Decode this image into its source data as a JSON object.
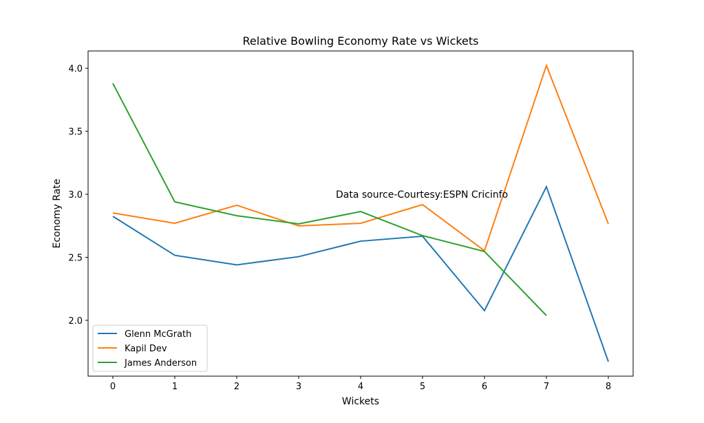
{
  "chart_data": {
    "type": "line",
    "title": "Relative Bowling Economy Rate vs Wickets",
    "xlabel": "Wickets",
    "ylabel": "Economy Rate",
    "xlim": [
      -0.4,
      8.4
    ],
    "ylim": [
      1.557,
      4.137
    ],
    "xticks": [
      0,
      1,
      2,
      3,
      4,
      5,
      6,
      7,
      8
    ],
    "yticks": [
      2.0,
      2.5,
      3.0,
      3.5,
      4.0
    ],
    "ytick_labels": [
      "2.0",
      "2.5",
      "3.0",
      "3.5",
      "4.0"
    ],
    "grid": false,
    "legend_position": "lower-left",
    "annotation": {
      "text": "Data source-Courtesy:ESPN Cricinfo",
      "x": 3.6,
      "y": 3.0
    },
    "series": [
      {
        "name": "Glenn McGrath",
        "color": "#1f77b4",
        "x": [
          0,
          1,
          2,
          3,
          4,
          5,
          6,
          7,
          8
        ],
        "values": [
          2.825,
          2.516,
          2.44,
          2.505,
          2.628,
          2.667,
          2.077,
          3.06,
          1.672
        ]
      },
      {
        "name": "Kapil Dev",
        "color": "#ff7f0e",
        "x": [
          0,
          1,
          2,
          3,
          4,
          5,
          6,
          7,
          8
        ],
        "values": [
          2.852,
          2.77,
          2.913,
          2.749,
          2.77,
          2.918,
          2.552,
          4.022,
          2.765
        ]
      },
      {
        "name": "James Anderson",
        "color": "#2ca02c",
        "x": [
          0,
          1,
          2,
          3,
          4,
          5,
          6,
          7
        ],
        "values": [
          3.88,
          2.94,
          2.83,
          2.765,
          2.863,
          2.672,
          2.546,
          2.038
        ]
      }
    ]
  }
}
